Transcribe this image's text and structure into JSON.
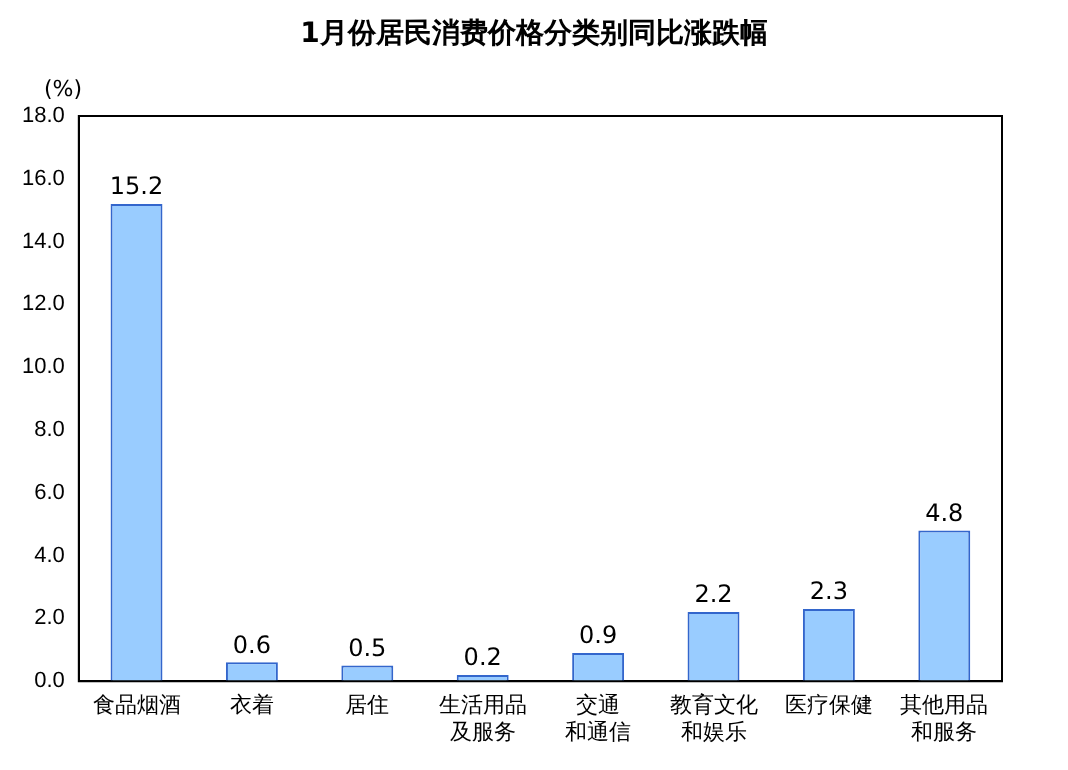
{
  "chart_data": {
    "type": "bar",
    "title": "1月份居民消费价格分类别同比涨跌幅",
    "ylabel": "(%)",
    "categories": [
      "食品烟酒",
      "衣着",
      "居住",
      "生活用品及服务",
      "交通和通信",
      "教育文化和娱乐",
      "医疗保健",
      "其他用品和服务"
    ],
    "values": [
      15.2,
      0.6,
      0.5,
      0.2,
      0.9,
      2.2,
      2.3,
      4.8
    ],
    "color": "#99ccff",
    "ylim": [
      0,
      18
    ],
    "yticks": [
      {
        "value": 0,
        "label": "0.0"
      },
      {
        "value": 2,
        "label": "2.0"
      },
      {
        "value": 4,
        "label": "4.0"
      },
      {
        "value": 6,
        "label": "6.0"
      },
      {
        "value": 8,
        "label": "8.0"
      },
      {
        "value": 10,
        "label": "10.0"
      },
      {
        "value": 12,
        "label": "12.0"
      },
      {
        "value": 14,
        "label": "14.0"
      },
      {
        "value": 16,
        "label": "16.0"
      },
      {
        "value": 18,
        "label": "18.0"
      }
    ],
    "grid": false,
    "legend": false,
    "data_labels": true
  }
}
